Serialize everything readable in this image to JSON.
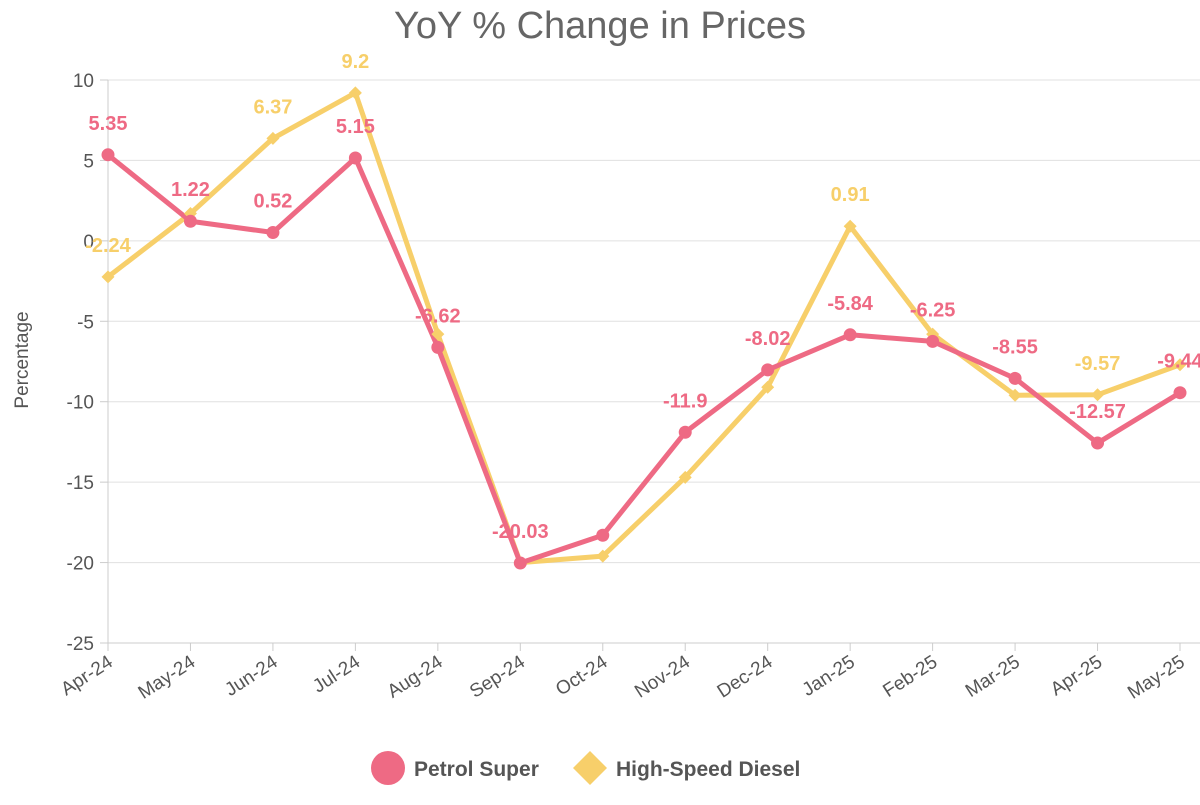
{
  "chart_data": {
    "type": "line",
    "title": "YoY % Change in Prices",
    "xlabel": "",
    "ylabel": "Percentage",
    "ylim": [
      -25,
      10
    ],
    "yticks": [
      "10",
      "5",
      "0",
      "-5",
      "-10",
      "-15",
      "-20",
      "-25"
    ],
    "ytick_values": [
      10,
      5,
      0,
      -5,
      -10,
      -15,
      -20,
      -25
    ],
    "categories": [
      "Apr-24",
      "May-24",
      "Jun-24",
      "Jul-24",
      "Aug-24",
      "Sep-24",
      "Oct-24",
      "Nov-24",
      "Dec-24",
      "Jan-25",
      "Feb-25",
      "Mar-25",
      "Apr-25",
      "May-25"
    ],
    "grid": true,
    "legend_position": "bottom",
    "series": [
      {
        "name": "Petrol Super",
        "color": "#ee6a84",
        "marker": "circle",
        "values": [
          5.35,
          1.22,
          0.52,
          5.15,
          -6.62,
          -20.03,
          -18.3,
          -11.9,
          -8.02,
          -5.84,
          -6.25,
          -8.55,
          -12.57,
          -9.44
        ],
        "labels": [
          "5.35",
          "1.22",
          "0.52",
          "5.15",
          "-6.62",
          "-20.03",
          "",
          "-11.9",
          "-8.02",
          "-5.84",
          "-6.25",
          "-8.55",
          "-12.57",
          "-9.44"
        ]
      },
      {
        "name": "High-Speed Diesel",
        "color": "#f7cf6a",
        "marker": "diamond",
        "values": [
          -2.24,
          1.7,
          6.37,
          9.2,
          -5.8,
          -20.0,
          -19.6,
          -14.7,
          -9.1,
          0.91,
          -5.8,
          -9.6,
          -9.57,
          -7.7
        ],
        "labels": [
          "-2.24",
          "",
          "6.37",
          "9.2",
          "",
          "",
          "",
          "",
          "",
          "0.91",
          "",
          "",
          "-9.57",
          ""
        ]
      }
    ]
  }
}
